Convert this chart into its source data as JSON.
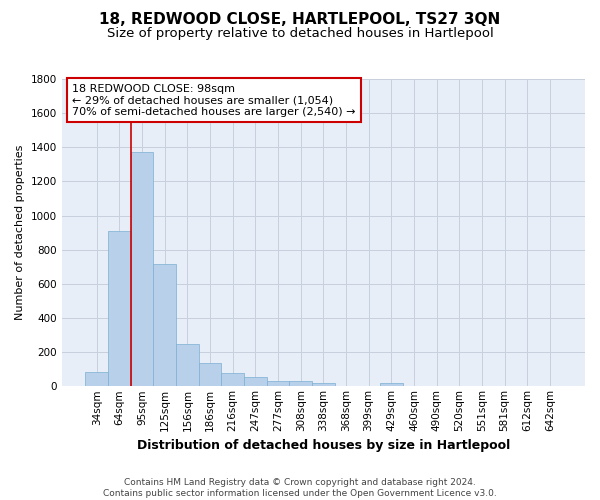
{
  "title": "18, REDWOOD CLOSE, HARTLEPOOL, TS27 3QN",
  "subtitle": "Size of property relative to detached houses in Hartlepool",
  "xlabel": "Distribution of detached houses by size in Hartlepool",
  "ylabel": "Number of detached properties",
  "categories": [
    "34sqm",
    "64sqm",
    "95sqm",
    "125sqm",
    "156sqm",
    "186sqm",
    "216sqm",
    "247sqm",
    "277sqm",
    "308sqm",
    "338sqm",
    "368sqm",
    "399sqm",
    "429sqm",
    "460sqm",
    "490sqm",
    "520sqm",
    "551sqm",
    "581sqm",
    "612sqm",
    "642sqm"
  ],
  "values": [
    83,
    910,
    1370,
    715,
    245,
    135,
    80,
    52,
    30,
    30,
    18,
    0,
    0,
    18,
    0,
    0,
    0,
    0,
    0,
    0,
    0
  ],
  "bar_color": "#b8d0ea",
  "bar_edgecolor": "#7bafd4",
  "redline_index": 2,
  "annotation_text": "18 REDWOOD CLOSE: 98sqm\n← 29% of detached houses are smaller (1,054)\n70% of semi-detached houses are larger (2,540) →",
  "annotation_box_facecolor": "#ffffff",
  "annotation_box_edgecolor": "#cc0000",
  "ylim": [
    0,
    1800
  ],
  "yticks": [
    0,
    200,
    400,
    600,
    800,
    1000,
    1200,
    1400,
    1600,
    1800
  ],
  "grid_color": "#c8d0de",
  "background_color": "#e8eef8",
  "footer_line1": "Contains HM Land Registry data © Crown copyright and database right 2024.",
  "footer_line2": "Contains public sector information licensed under the Open Government Licence v3.0.",
  "title_fontsize": 11,
  "subtitle_fontsize": 9.5,
  "xlabel_fontsize": 9,
  "ylabel_fontsize": 8,
  "tick_fontsize": 7.5,
  "annotation_fontsize": 8,
  "footer_fontsize": 6.5
}
